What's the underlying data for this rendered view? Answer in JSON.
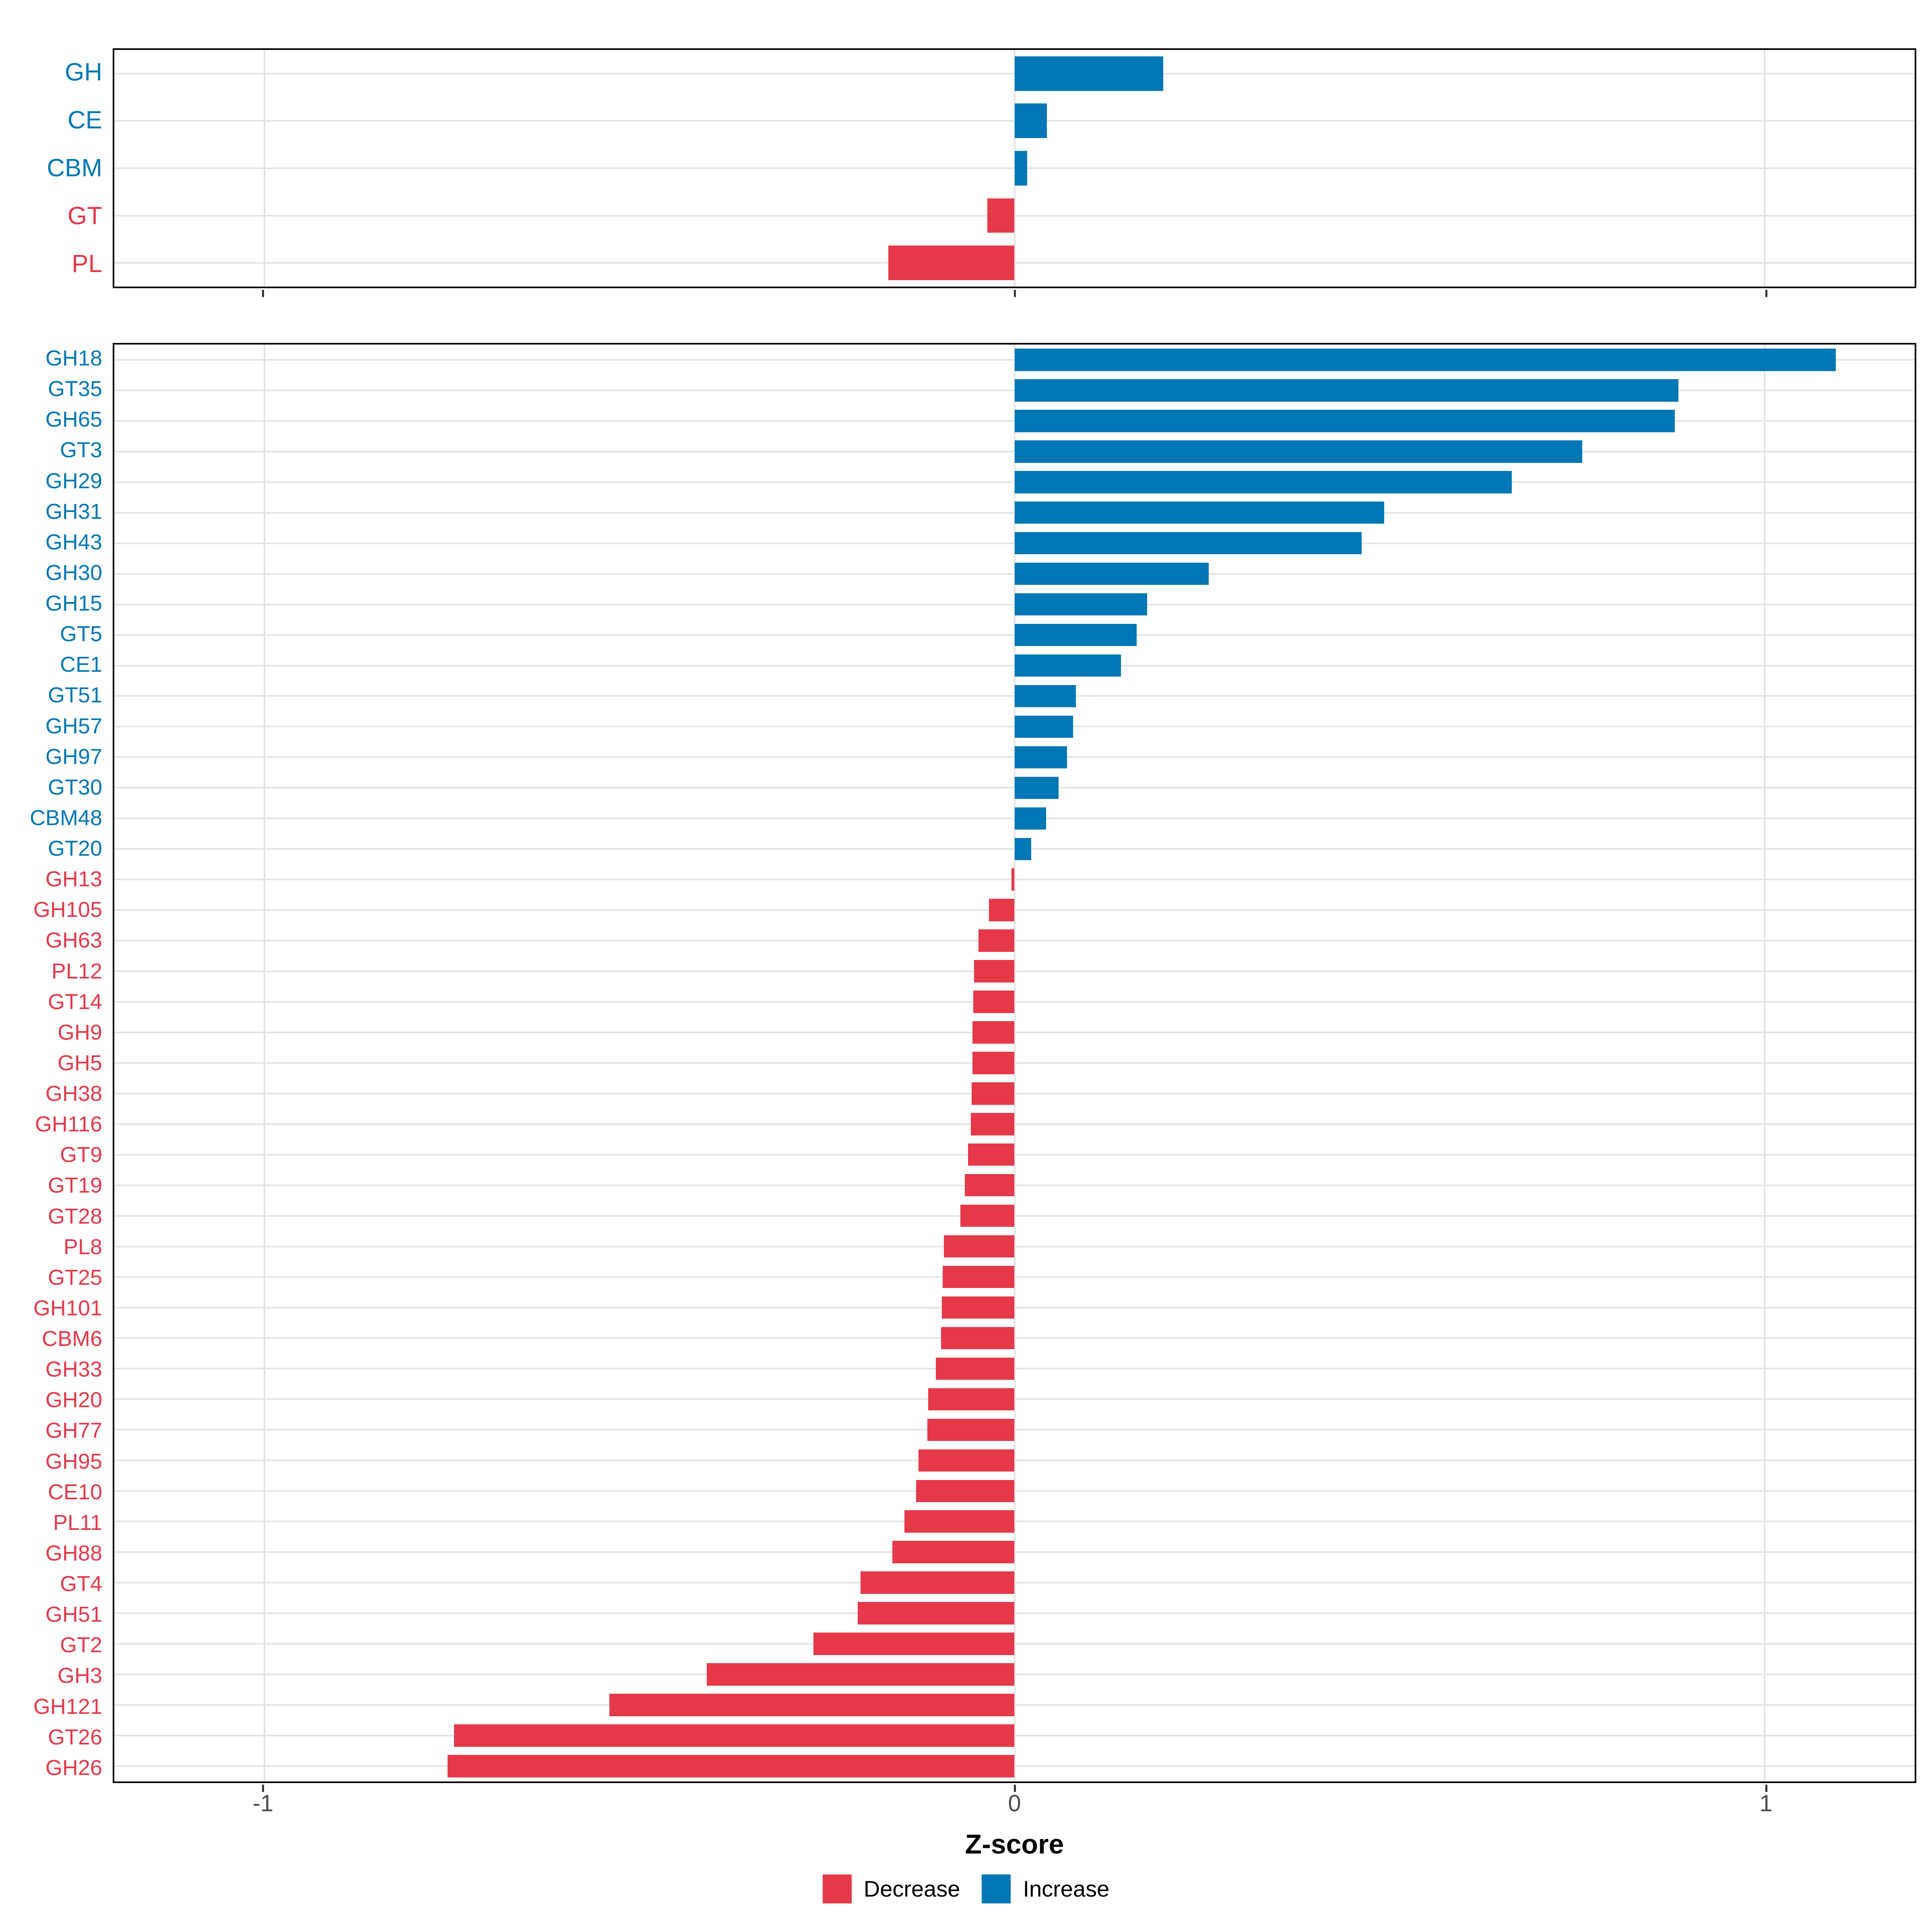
{
  "figure": {
    "xlabel": "Z-score",
    "xticks": [
      "-1",
      "0",
      "1"
    ]
  },
  "colors": {
    "Increase": "#0277B5",
    "Decrease": "#E5394A",
    "grid": "#E3E3E3",
    "panel_border": "#000000",
    "tick_label": "#4D4D4D",
    "tick_mark": "#333333",
    "background": "#FFFFFF"
  },
  "legend": {
    "items": [
      {
        "label": "Decrease",
        "color": "#E5394A"
      },
      {
        "label": "Increase",
        "color": "#0277B5"
      }
    ]
  },
  "chart_data": [
    {
      "type": "bar",
      "orientation": "horizontal",
      "panel": "top",
      "title": "",
      "xlabel": "Z-score",
      "ylabel": "",
      "xlim": [
        -1.2,
        1.2
      ],
      "tick_values": [
        -1,
        0,
        1
      ],
      "grid": true,
      "categories": [
        "GH",
        "CE",
        "CBM",
        "GT",
        "PL"
      ],
      "values": [
        0.198,
        0.043,
        0.017,
        -0.036,
        -0.168
      ],
      "directions": [
        "Increase",
        "Increase",
        "Increase",
        "Decrease",
        "Decrease"
      ]
    },
    {
      "type": "bar",
      "orientation": "horizontal",
      "panel": "bottom",
      "title": "",
      "xlabel": "Z-score",
      "ylabel": "",
      "xlim": [
        -1.2,
        1.2
      ],
      "tick_values": [
        -1,
        0,
        1
      ],
      "grid": true,
      "categories": [
        "GH18",
        "GT35",
        "GH65",
        "GT3",
        "GH29",
        "GH31",
        "GH43",
        "GH30",
        "GH15",
        "GT5",
        "CE1",
        "GT51",
        "GH57",
        "GH97",
        "GT30",
        "CBM48",
        "GT20",
        "GH13",
        "GH105",
        "GH63",
        "PL12",
        "GT14",
        "GH9",
        "GH5",
        "GH38",
        "GH116",
        "GT9",
        "GT19",
        "GT28",
        "PL8",
        "GT25",
        "GH101",
        "CBM6",
        "GH33",
        "GH20",
        "GH77",
        "GH95",
        "CE10",
        "PL11",
        "GH88",
        "GT4",
        "GH51",
        "GT2",
        "GH3",
        "GH121",
        "GT26",
        "GH26"
      ],
      "values": [
        1.095,
        0.885,
        0.88,
        0.757,
        0.663,
        0.493,
        0.463,
        0.259,
        0.177,
        0.163,
        0.142,
        0.082,
        0.078,
        0.07,
        0.059,
        0.042,
        0.022,
        -0.004,
        -0.034,
        -0.048,
        -0.054,
        -0.055,
        -0.056,
        -0.056,
        -0.057,
        -0.058,
        -0.062,
        -0.066,
        -0.072,
        -0.094,
        -0.096,
        -0.097,
        -0.098,
        -0.105,
        -0.115,
        -0.116,
        -0.128,
        -0.131,
        -0.147,
        -0.163,
        -0.205,
        -0.209,
        -0.268,
        -0.41,
        -0.54,
        -0.747,
        -0.756
      ],
      "directions": [
        "Increase",
        "Increase",
        "Increase",
        "Increase",
        "Increase",
        "Increase",
        "Increase",
        "Increase",
        "Increase",
        "Increase",
        "Increase",
        "Increase",
        "Increase",
        "Increase",
        "Increase",
        "Increase",
        "Increase",
        "Decrease",
        "Decrease",
        "Decrease",
        "Decrease",
        "Decrease",
        "Decrease",
        "Decrease",
        "Decrease",
        "Decrease",
        "Decrease",
        "Decrease",
        "Decrease",
        "Decrease",
        "Decrease",
        "Decrease",
        "Decrease",
        "Decrease",
        "Decrease",
        "Decrease",
        "Decrease",
        "Decrease",
        "Decrease",
        "Decrease",
        "Decrease",
        "Decrease",
        "Decrease",
        "Decrease",
        "Decrease",
        "Decrease",
        "Decrease"
      ]
    }
  ]
}
